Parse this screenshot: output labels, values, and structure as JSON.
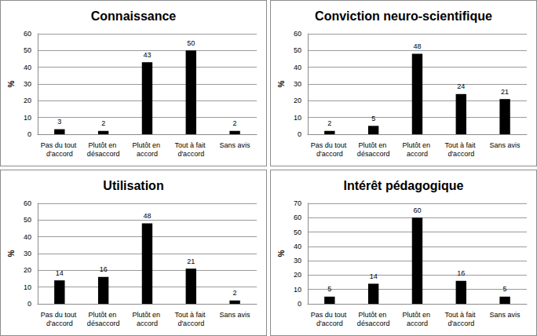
{
  "chart_data": [
    {
      "type": "bar",
      "title": "Connaissance",
      "categories": [
        "Pas du tout d'accord",
        "Plutôt en désaccord",
        "Plutôt en accord",
        "Tout à fait d'accord",
        "Sans avis"
      ],
      "values": [
        3,
        2,
        43,
        50,
        2
      ],
      "color": "#000000",
      "ylabel": "%",
      "ylim": [
        0,
        60
      ],
      "yticks": [
        0,
        10,
        20,
        30,
        40,
        50,
        60
      ],
      "grid": true,
      "data_labels": true
    },
    {
      "type": "bar",
      "title": "Conviction neuro-scientifique",
      "categories": [
        "Pas du tout d'accord",
        "Plutôt en désaccord",
        "Plutôt en accord",
        "Tout à fait d'accord",
        "Sans avis"
      ],
      "values": [
        2,
        5,
        48,
        24,
        21
      ],
      "color": "#000000",
      "ylabel": "%",
      "ylim": [
        0,
        60
      ],
      "yticks": [
        0,
        10,
        20,
        30,
        40,
        50,
        60
      ],
      "grid": true,
      "data_labels": true
    },
    {
      "type": "bar",
      "title": "Utilisation",
      "categories": [
        "Pas du tout d'accord",
        "Plutôt en désaccord",
        "Plutôt en accord",
        "Tout à fait d'accord",
        "Sans avis"
      ],
      "values": [
        14,
        16,
        48,
        21,
        2
      ],
      "color": "#000000",
      "ylabel": "%",
      "ylim": [
        0,
        60
      ],
      "yticks": [
        0,
        10,
        20,
        30,
        40,
        50,
        60
      ],
      "grid": true,
      "data_labels": true
    },
    {
      "type": "bar",
      "title": "Intérêt pédagogique",
      "categories": [
        "Pas du tout d'accord",
        "Plutôt en désaccord",
        "Plutôt en accord",
        "Tout à fait d'accord",
        "Sans avis"
      ],
      "values": [
        5,
        14,
        60,
        16,
        5
      ],
      "color": "#000000",
      "ylabel": "%",
      "ylim": [
        0,
        70
      ],
      "yticks": [
        0,
        10,
        20,
        30,
        40,
        50,
        60,
        70
      ],
      "grid": true,
      "data_labels": true
    }
  ]
}
